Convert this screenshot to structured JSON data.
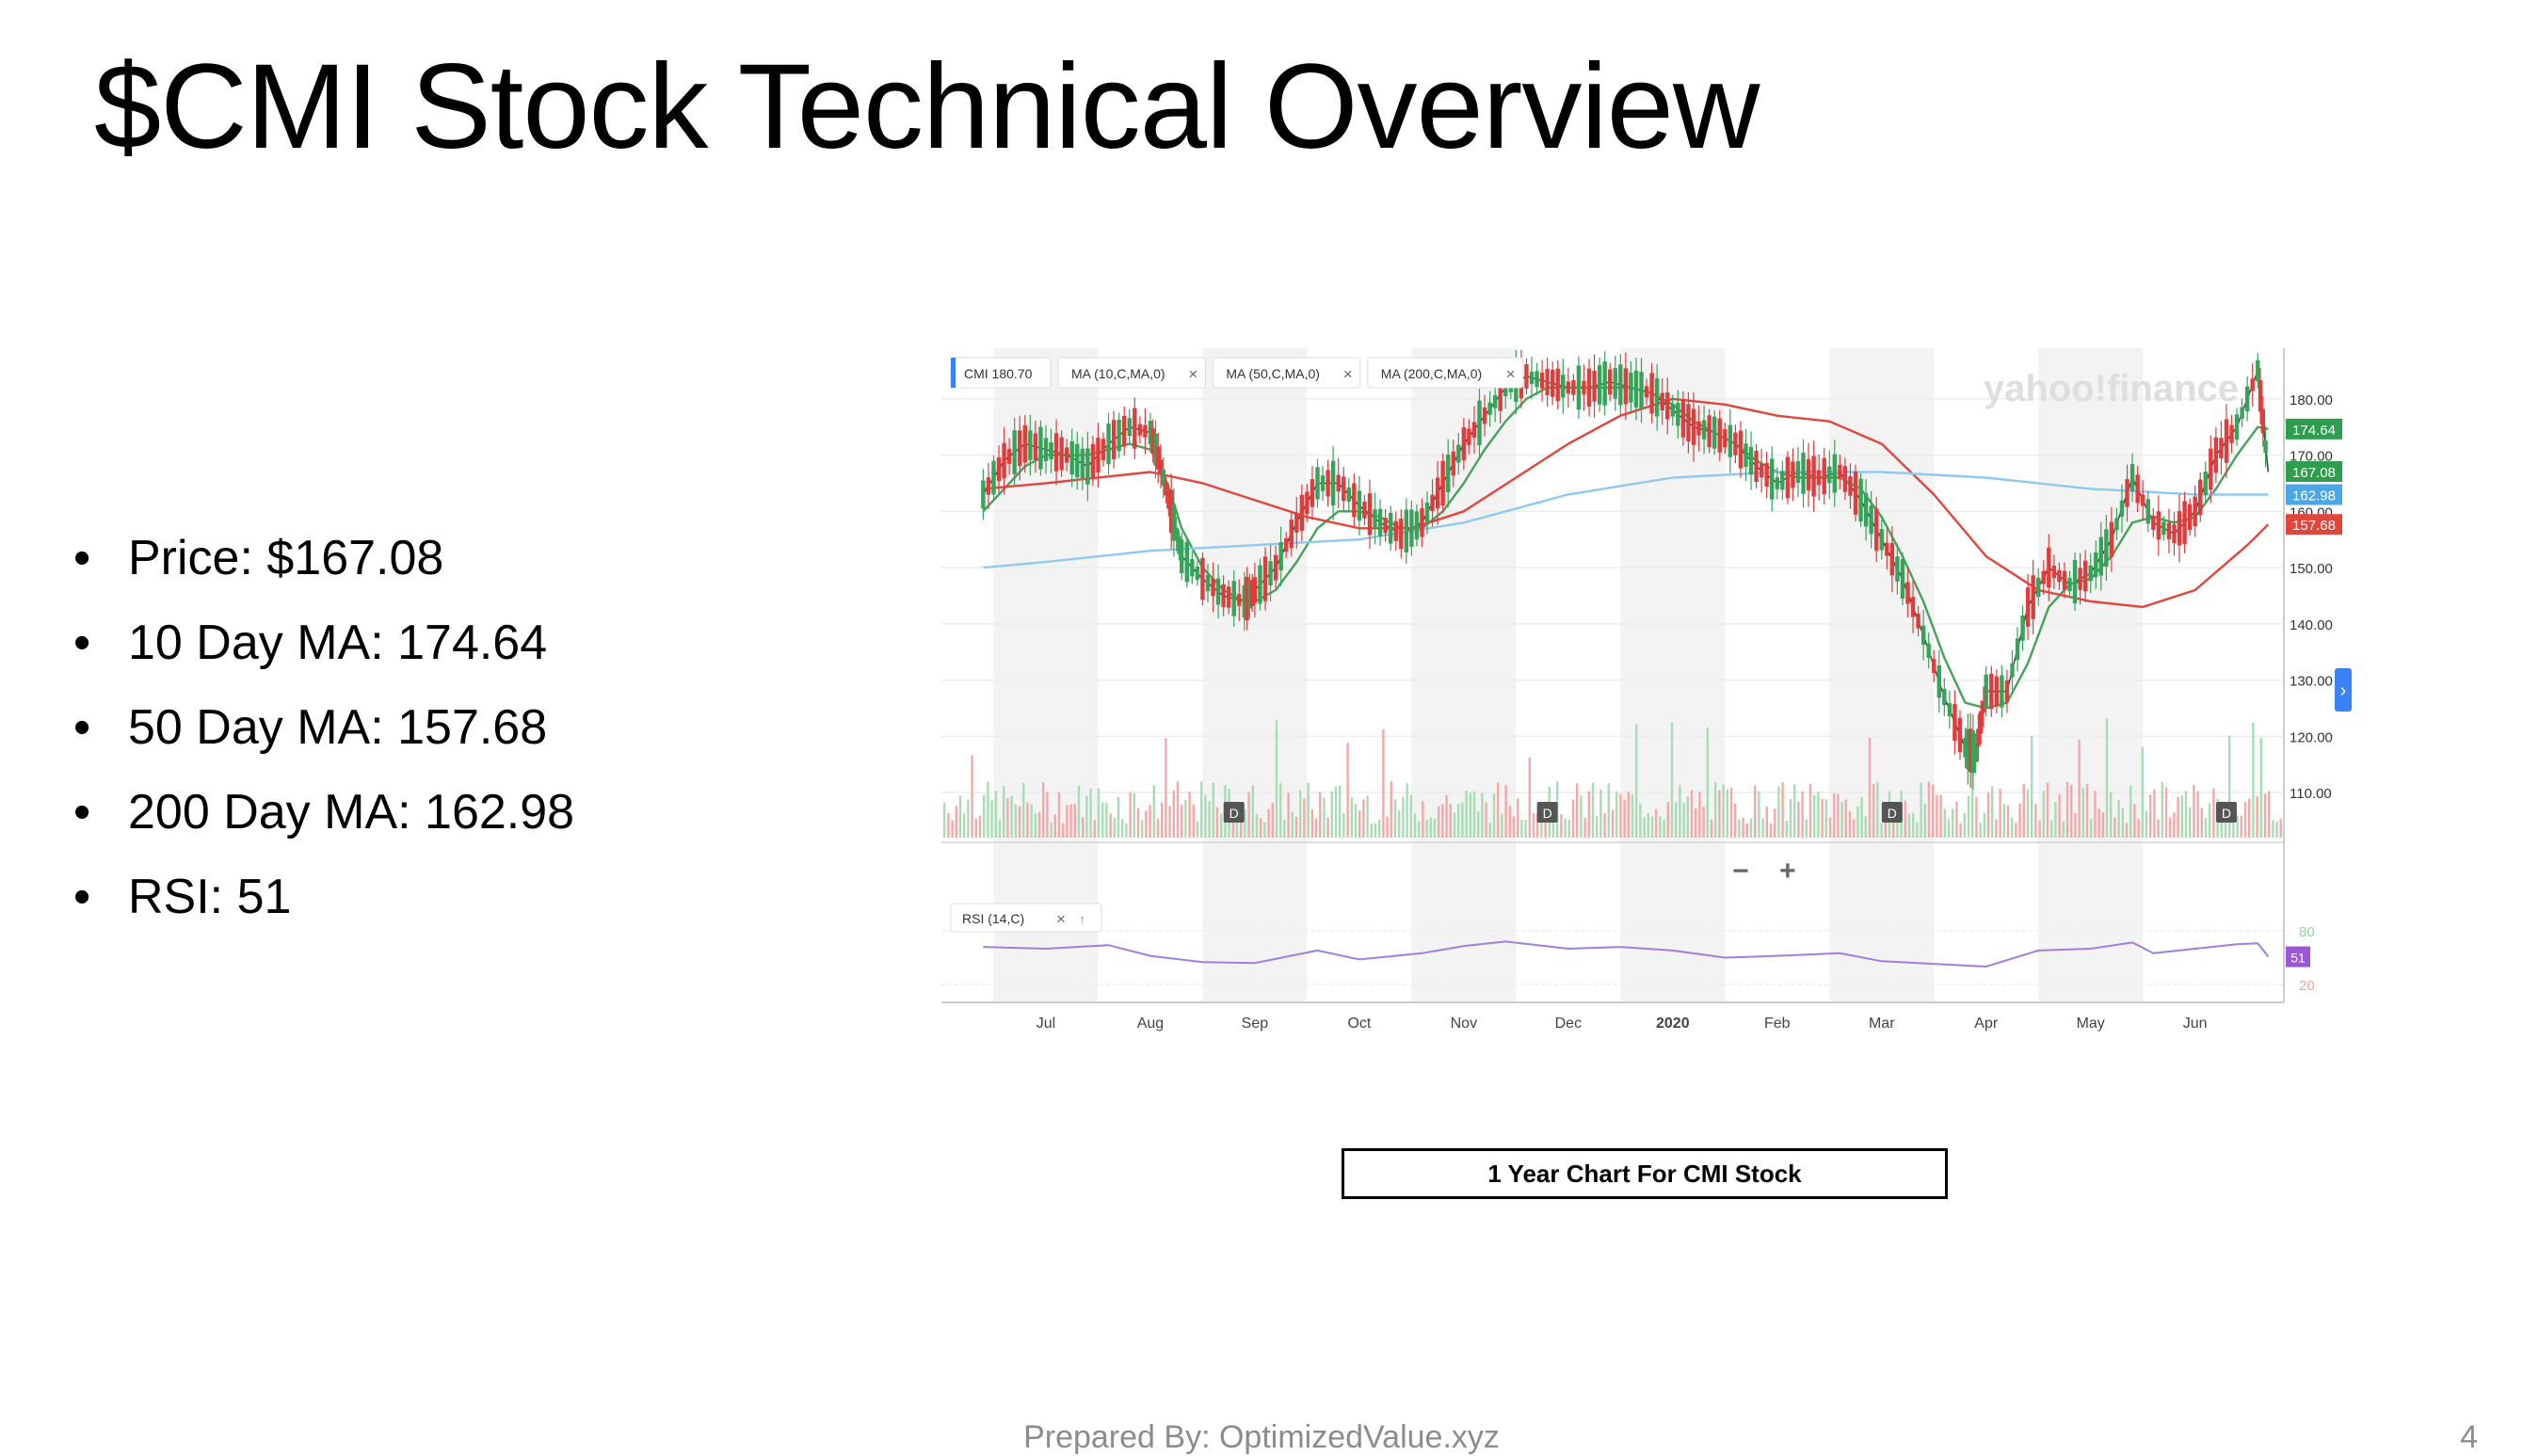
{
  "slide": {
    "title": "$CMI Stock Technical Overview",
    "bullets": [
      "Price: $167.08",
      "10 Day MA: 174.64",
      "50 Day MA: 157.68",
      "200 Day MA: 162.98",
      "RSI: 51"
    ],
    "caption": "1 Year Chart For CMI Stock",
    "footer": "Prepared By: OptimizedValue.xyz",
    "page_number": "4"
  },
  "chart_data": {
    "type": "line",
    "watermark": "yahoo!finance",
    "legend": [
      "CMI 180.70",
      "MA (10,C,MA,0)",
      "MA (50,C,MA,0)",
      "MA (200,C,MA,0)"
    ],
    "rsi_label": "RSI (14,C)",
    "x": [
      "Jul",
      "Aug",
      "Sep",
      "Oct",
      "Nov",
      "Dec",
      "2020",
      "Feb",
      "Mar",
      "Apr",
      "May",
      "Jun"
    ],
    "y_ticks": [
      "180.00",
      "170.00",
      "160.00",
      "150.00",
      "140.00",
      "130.00",
      "120.00",
      "110.00"
    ],
    "ylim": [
      102,
      189
    ],
    "rsi_ticks": [
      "80",
      "20"
    ],
    "rsi_ylim": [
      0,
      100
    ],
    "dividend_marker": "D",
    "dividend_positions": [
      1.8,
      4.8,
      8.1,
      11.3
    ],
    "zoom_controls": [
      "−",
      "+"
    ],
    "price_tags": [
      {
        "label": "174.64",
        "value": 174.64,
        "color": "#2e9e4e"
      },
      {
        "label": "167.08",
        "value": 167.08,
        "color": "#2e9e4e"
      },
      {
        "label": "162.98",
        "value": 162.98,
        "color": "#4aa8e8"
      },
      {
        "label": "157.68",
        "value": 157.68,
        "color": "#e0463c"
      }
    ],
    "rsi_tag": {
      "label": "51",
      "value": 51,
      "color": "#9b59d6"
    },
    "series": [
      {
        "name": "CMI 180.70",
        "color": "#444444",
        "values": [
          [
            -0.6,
            163
          ],
          [
            -0.4,
            169
          ],
          [
            -0.2,
            172
          ],
          [
            0,
            171
          ],
          [
            0.2,
            170
          ],
          [
            0.4,
            168
          ],
          [
            0.6,
            172
          ],
          [
            0.8,
            175
          ],
          [
            1.0,
            174
          ],
          [
            1.1,
            168
          ],
          [
            1.2,
            160
          ],
          [
            1.3,
            152
          ],
          [
            1.5,
            148
          ],
          [
            1.7,
            145
          ],
          [
            1.9,
            144
          ],
          [
            2.0,
            146
          ],
          [
            2.2,
            150
          ],
          [
            2.4,
            158
          ],
          [
            2.6,
            165
          ],
          [
            2.8,
            165
          ],
          [
            3.0,
            161
          ],
          [
            3.2,
            158
          ],
          [
            3.4,
            156
          ],
          [
            3.6,
            158
          ],
          [
            3.8,
            165
          ],
          [
            4.0,
            172
          ],
          [
            4.2,
            177
          ],
          [
            4.4,
            182
          ],
          [
            4.6,
            184
          ],
          [
            4.8,
            183
          ],
          [
            5.0,
            182
          ],
          [
            5.2,
            182
          ],
          [
            5.4,
            183
          ],
          [
            5.6,
            182
          ],
          [
            5.8,
            181
          ],
          [
            6.0,
            178
          ],
          [
            6.2,
            175
          ],
          [
            6.4,
            174
          ],
          [
            6.6,
            172
          ],
          [
            6.8,
            168
          ],
          [
            7.0,
            165
          ],
          [
            7.2,
            167
          ],
          [
            7.4,
            166
          ],
          [
            7.6,
            167
          ],
          [
            7.8,
            162
          ],
          [
            8.0,
            155
          ],
          [
            8.2,
            148
          ],
          [
            8.4,
            138
          ],
          [
            8.6,
            127
          ],
          [
            8.8,
            118
          ],
          [
            8.9,
            117
          ],
          [
            9.0,
            128
          ],
          [
            9.2,
            128
          ],
          [
            9.4,
            143
          ],
          [
            9.6,
            150
          ],
          [
            9.8,
            147
          ],
          [
            10.0,
            149
          ],
          [
            10.2,
            155
          ],
          [
            10.4,
            166
          ],
          [
            10.6,
            158
          ],
          [
            10.8,
            156
          ],
          [
            11.0,
            160
          ],
          [
            11.2,
            170
          ],
          [
            11.4,
            175
          ],
          [
            11.6,
            185
          ],
          [
            11.7,
            167
          ]
        ]
      },
      {
        "name": "MA (10,C,MA,0)",
        "color": "#46a15a",
        "values": [
          [
            -0.6,
            160
          ],
          [
            -0.4,
            164
          ],
          [
            -0.2,
            168
          ],
          [
            0,
            170
          ],
          [
            0.2,
            170
          ],
          [
            0.4,
            170
          ],
          [
            0.6,
            171
          ],
          [
            0.8,
            172
          ],
          [
            1.0,
            171
          ],
          [
            1.1,
            168
          ],
          [
            1.2,
            163
          ],
          [
            1.3,
            157
          ],
          [
            1.5,
            150
          ],
          [
            1.7,
            146
          ],
          [
            1.9,
            144
          ],
          [
            2.0,
            144
          ],
          [
            2.2,
            146
          ],
          [
            2.4,
            151
          ],
          [
            2.6,
            157
          ],
          [
            2.8,
            160
          ],
          [
            3.0,
            160
          ],
          [
            3.2,
            159
          ],
          [
            3.4,
            157
          ],
          [
            3.6,
            157
          ],
          [
            3.8,
            160
          ],
          [
            4.0,
            165
          ],
          [
            4.2,
            171
          ],
          [
            4.4,
            176
          ],
          [
            4.6,
            180
          ],
          [
            4.8,
            182
          ],
          [
            5.0,
            182
          ],
          [
            5.2,
            182
          ],
          [
            5.4,
            182
          ],
          [
            5.6,
            182
          ],
          [
            5.8,
            181
          ],
          [
            6.0,
            179
          ],
          [
            6.2,
            176
          ],
          [
            6.4,
            174
          ],
          [
            6.6,
            172
          ],
          [
            6.8,
            169
          ],
          [
            7.0,
            167
          ],
          [
            7.2,
            166
          ],
          [
            7.4,
            166
          ],
          [
            7.6,
            166
          ],
          [
            7.8,
            164
          ],
          [
            8.0,
            159
          ],
          [
            8.2,
            152
          ],
          [
            8.4,
            144
          ],
          [
            8.6,
            134
          ],
          [
            8.8,
            126
          ],
          [
            9.0,
            125
          ],
          [
            9.2,
            126
          ],
          [
            9.4,
            133
          ],
          [
            9.6,
            143
          ],
          [
            9.8,
            147
          ],
          [
            10.0,
            148
          ],
          [
            10.2,
            152
          ],
          [
            10.4,
            158
          ],
          [
            10.6,
            159
          ],
          [
            10.8,
            158
          ],
          [
            11.0,
            159
          ],
          [
            11.2,
            164
          ],
          [
            11.4,
            170
          ],
          [
            11.6,
            175
          ],
          [
            11.7,
            174.64
          ]
        ]
      },
      {
        "name": "MA (50,C,MA,0)",
        "color": "#e0463c",
        "values": [
          [
            -0.6,
            164
          ],
          [
            0,
            165
          ],
          [
            1.0,
            167
          ],
          [
            1.5,
            165
          ],
          [
            2.0,
            162
          ],
          [
            2.5,
            159
          ],
          [
            3.0,
            157
          ],
          [
            3.5,
            157
          ],
          [
            4.0,
            160
          ],
          [
            4.5,
            166
          ],
          [
            5.0,
            172
          ],
          [
            5.5,
            177
          ],
          [
            6.0,
            180
          ],
          [
            6.5,
            179
          ],
          [
            7.0,
            177
          ],
          [
            7.5,
            176
          ],
          [
            8.0,
            172
          ],
          [
            8.5,
            163
          ],
          [
            9.0,
            152
          ],
          [
            9.5,
            146
          ],
          [
            10.0,
            144
          ],
          [
            10.5,
            143
          ],
          [
            11.0,
            146
          ],
          [
            11.5,
            154
          ],
          [
            11.7,
            157.68
          ]
        ]
      },
      {
        "name": "MA (200,C,MA,0)",
        "color": "#8ec9ef",
        "values": [
          [
            -0.6,
            150
          ],
          [
            0,
            151
          ],
          [
            1.0,
            153
          ],
          [
            2.0,
            154
          ],
          [
            3.0,
            155
          ],
          [
            4.0,
            158
          ],
          [
            5.0,
            163
          ],
          [
            6.0,
            166
          ],
          [
            7.0,
            167
          ],
          [
            8.0,
            167
          ],
          [
            8.5,
            166.5
          ],
          [
            9.0,
            166
          ],
          [
            10.0,
            164
          ],
          [
            11.0,
            163
          ],
          [
            11.7,
            162.98
          ]
        ]
      },
      {
        "name": "RSI (14,C)",
        "color": "#a07fdc",
        "values": [
          [
            -0.6,
            62
          ],
          [
            0,
            60
          ],
          [
            0.6,
            64
          ],
          [
            1.0,
            52
          ],
          [
            1.5,
            45
          ],
          [
            2.0,
            44
          ],
          [
            2.6,
            58
          ],
          [
            3.0,
            48
          ],
          [
            3.6,
            55
          ],
          [
            4.0,
            63
          ],
          [
            4.4,
            68
          ],
          [
            5.0,
            60
          ],
          [
            5.5,
            62
          ],
          [
            6.0,
            58
          ],
          [
            6.5,
            50
          ],
          [
            7.0,
            52
          ],
          [
            7.6,
            55
          ],
          [
            8.0,
            46
          ],
          [
            8.5,
            43
          ],
          [
            9.0,
            40
          ],
          [
            9.5,
            58
          ],
          [
            10.0,
            60
          ],
          [
            10.4,
            67
          ],
          [
            10.6,
            55
          ],
          [
            11.0,
            60
          ],
          [
            11.4,
            65
          ],
          [
            11.6,
            66
          ],
          [
            11.7,
            51
          ]
        ]
      }
    ]
  }
}
